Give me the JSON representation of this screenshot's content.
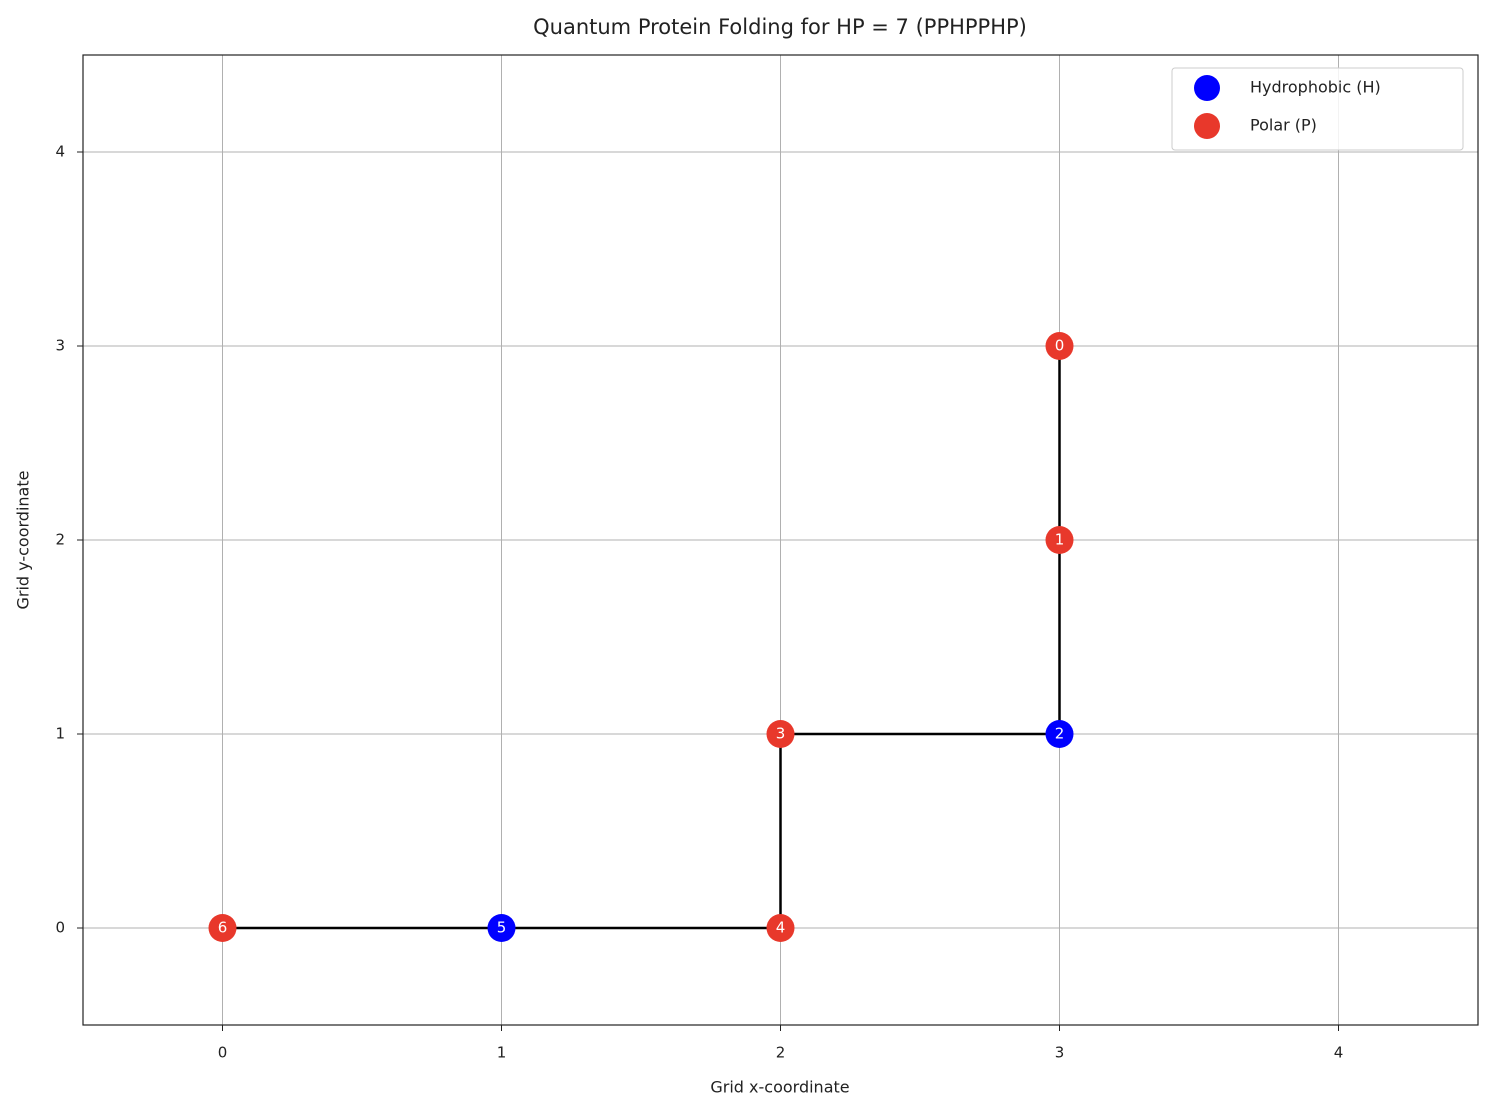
{
  "chart_data": {
    "type": "scatter",
    "title": "Quantum Protein Folding for HP = 7 (PPHPPHP)",
    "x_label": "Grid x-coordinate",
    "y_label": "Grid y-coordinate",
    "xlim": [
      -0.5,
      4.5
    ],
    "ylim": [
      -0.5,
      4.5
    ],
    "xticks": [
      0,
      1,
      2,
      3,
      4
    ],
    "yticks": [
      0,
      1,
      2,
      3,
      4
    ],
    "grid": true,
    "legend": "upper right",
    "chain": {
      "color": "#000000",
      "x": [
        3,
        3,
        3,
        2,
        2,
        1,
        0
      ],
      "y": [
        3,
        2,
        1,
        1,
        0,
        0,
        0
      ]
    },
    "series": [
      {
        "name": "Hydrophobic (H)",
        "color": "#0000ff",
        "x": [
          3,
          1
        ],
        "y": [
          1,
          0
        ],
        "labels": [
          "2",
          "5"
        ]
      },
      {
        "name": "Polar (P)",
        "color": "#e8382b",
        "x": [
          3,
          3,
          2,
          2,
          0
        ],
        "y": [
          3,
          2,
          1,
          0,
          0
        ],
        "labels": [
          "0",
          "1",
          "3",
          "4",
          "6"
        ]
      }
    ]
  }
}
